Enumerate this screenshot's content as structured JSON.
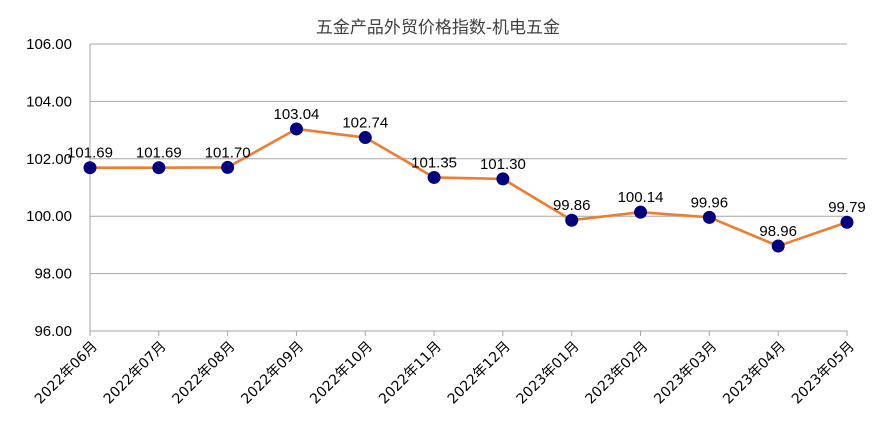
{
  "chart_data": {
    "type": "line",
    "title": "五金产品外贸价格指数-机电五金",
    "xlabel": "",
    "ylabel": "",
    "categories": [
      "2022年06月",
      "2022年07月",
      "2022年08月",
      "2022年09月",
      "2022年10月",
      "2022年11月",
      "2022年12月",
      "2023年01月",
      "2023年02月",
      "2023年03月",
      "2023年04月",
      "2023年05月"
    ],
    "series": [
      {
        "values": [
          101.69,
          101.69,
          101.7,
          103.04,
          102.74,
          101.35,
          101.3,
          99.86,
          100.14,
          99.96,
          98.96,
          99.79
        ],
        "labels": [
          "101.69",
          "101.69",
          "101.70",
          "103.04",
          "102.74",
          "101.35",
          "101.30",
          "99.86",
          "100.14",
          "99.96",
          "98.96",
          "99.79"
        ]
      }
    ],
    "ylim": [
      96,
      106
    ],
    "yticks": [
      "96.00",
      "98.00",
      "100.00",
      "102.00",
      "104.00",
      "106.00"
    ],
    "grid": true,
    "legend": "none",
    "colors": {
      "line": "#ED7D31",
      "marker": "#00007F",
      "grid": "#A6A6A6",
      "axis": "#A6A6A6"
    }
  }
}
